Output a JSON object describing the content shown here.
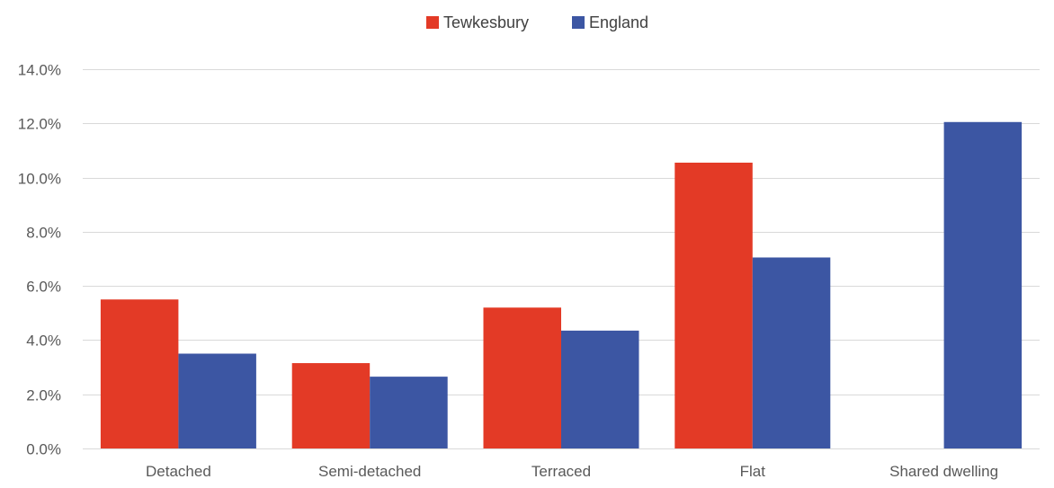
{
  "chart_data": {
    "type": "bar",
    "title": "",
    "xlabel": "",
    "ylabel": "",
    "categories": [
      "Detached",
      "Semi-detached",
      "Terraced",
      "Flat",
      "Shared dwelling"
    ],
    "series": [
      {
        "name": "Tewkesbury",
        "color": "#E33A26",
        "values": [
          5.5,
          3.15,
          5.2,
          10.55,
          0
        ]
      },
      {
        "name": "England",
        "color": "#3C56A3",
        "values": [
          3.5,
          2.65,
          4.35,
          7.05,
          12.05
        ]
      }
    ],
    "ylim": [
      0,
      14
    ],
    "yticks": [
      0,
      2,
      4,
      6,
      8,
      10,
      12,
      14
    ],
    "ytick_labels": [
      "0.0%",
      "2.0%",
      "4.0%",
      "6.0%",
      "8.0%",
      "10.0%",
      "12.0%",
      "14.0%"
    ],
    "legend": {
      "position": "top"
    },
    "grid": true
  }
}
